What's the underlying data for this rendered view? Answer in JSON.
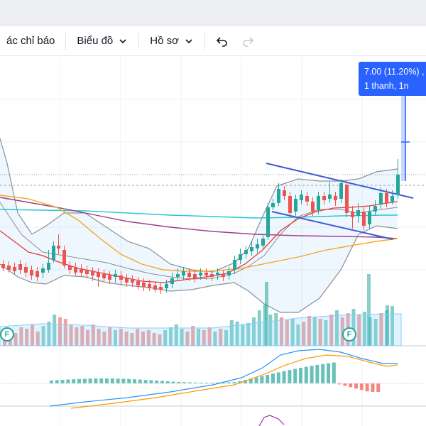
{
  "toolbar": {
    "indicators_label": "ác chỉ báo",
    "chart_type_label": "Biểu đồ",
    "profile_label": "Hồ sơ"
  },
  "measure_tooltip": {
    "line1": "7.00 (11.20%) ,",
    "line2": "1 thanh, 1n"
  },
  "event_badges": [
    "F",
    "F"
  ],
  "colors": {
    "up": "#26a69a",
    "down": "#ef5350",
    "selection": "#2962ff",
    "bollinger": "#8a8f99",
    "ma_red": "#e53935",
    "ma_orange": "#f5a623",
    "ma_purple": "#9c3f8e",
    "ma_cyan": "#26c6da"
  },
  "icons": {
    "undo": "undo-icon",
    "redo": "redo-icon",
    "chevron": "chevron-down-icon"
  }
}
